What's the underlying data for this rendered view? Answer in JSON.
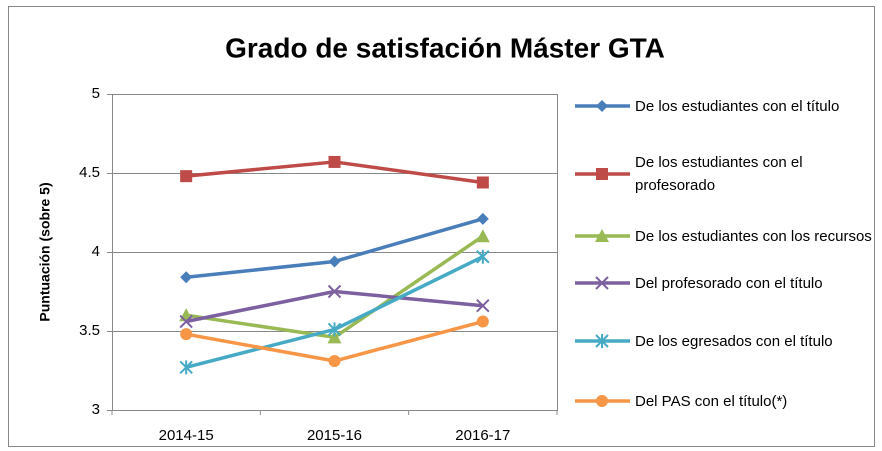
{
  "chart_data": {
    "type": "line",
    "title": "Grado de satisfación Máster GTA",
    "ylabel": "Puntuación (sobre 5)",
    "categories": [
      "2014-15",
      "2015-16",
      "2016-17"
    ],
    "ylim": [
      3,
      5
    ],
    "yticks": [
      3,
      3.5,
      4,
      4.5,
      5
    ],
    "grid": true,
    "legend": "right",
    "series": [
      {
        "name": "De los estudiantes con el título",
        "color": "#4a7ebb",
        "marker": "diamond",
        "values": [
          3.84,
          3.94,
          4.21
        ]
      },
      {
        "name": "De los estudiantes con el profesorado",
        "color": "#be4b48",
        "marker": "square",
        "values": [
          4.48,
          4.57,
          4.44
        ]
      },
      {
        "name": "De los estudiantes con los recursos",
        "color": "#98b954",
        "marker": "triangle",
        "values": [
          3.6,
          3.46,
          4.1
        ]
      },
      {
        "name": "Del profesorado con el título",
        "color": "#7d60a0",
        "marker": "x",
        "values": [
          3.56,
          3.75,
          3.66
        ]
      },
      {
        "name": "De los egresados con el título",
        "color": "#46aac5",
        "marker": "star",
        "values": [
          3.27,
          3.51,
          3.97
        ]
      },
      {
        "name": "Del PAS con el título(*)",
        "color": "#f79646",
        "marker": "circle",
        "values": [
          3.48,
          3.31,
          3.56
        ]
      }
    ]
  }
}
